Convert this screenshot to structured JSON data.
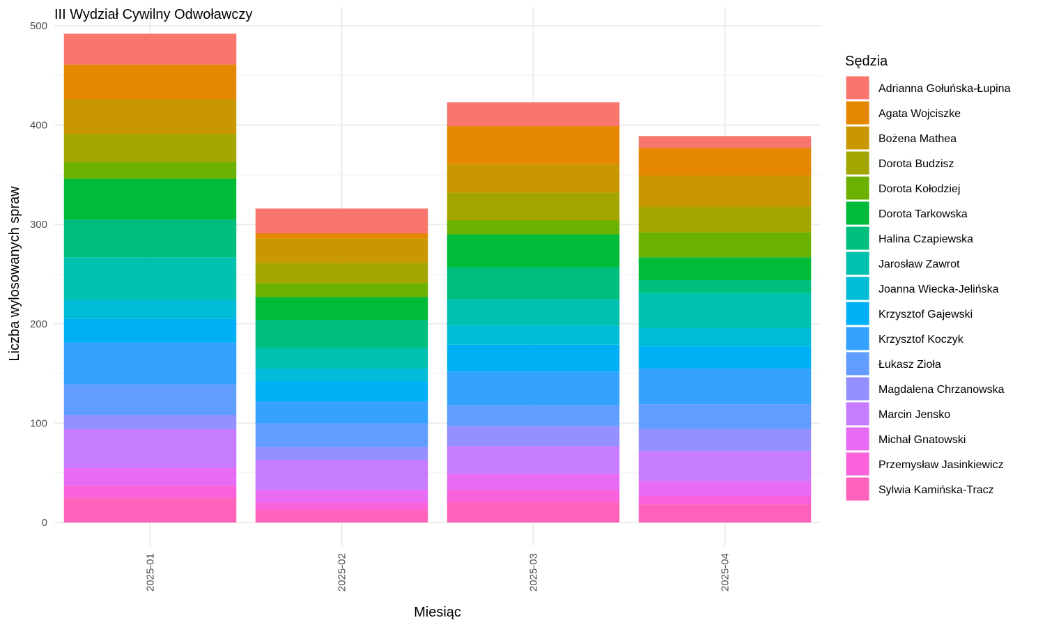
{
  "chart_data": {
    "type": "bar",
    "stacked": true,
    "title": "III Wydział Cywilny Odwoławczy",
    "xlabel": "Miesiąc",
    "ylabel": "Liczba wylosowanych spraw",
    "ylim": [
      0,
      500
    ],
    "yticks": [
      0,
      100,
      200,
      300,
      400,
      500
    ],
    "grid": true,
    "legend_title": "Sędzia",
    "legend_position": "right",
    "categories": [
      "2025-01",
      "2025-02",
      "2025-03",
      "2025-04"
    ],
    "series": [
      {
        "name": "Adrianna Gołuńska-Łupina",
        "color": "#F8766D",
        "values": [
          31,
          25,
          24,
          12
        ]
      },
      {
        "name": "Agata Wojciszke",
        "color": "#E58700",
        "values": [
          35,
          5,
          38,
          28
        ]
      },
      {
        "name": "Bożena Mathea",
        "color": "#C99800",
        "values": [
          35,
          25,
          29,
          31
        ]
      },
      {
        "name": "Dorota Budzisz",
        "color": "#A3A500",
        "values": [
          28,
          20,
          28,
          26
        ]
      },
      {
        "name": "Dorota Kołodziej",
        "color": "#6BB100",
        "values": [
          17,
          14,
          14,
          25
        ]
      },
      {
        "name": "Dorota Tarkowska",
        "color": "#00BA38",
        "values": [
          41,
          23,
          33,
          23
        ]
      },
      {
        "name": "Halina Czapiewska",
        "color": "#00BF7D",
        "values": [
          38,
          28,
          32,
          13
        ]
      },
      {
        "name": "Jarosław Zawrot",
        "color": "#00C0AF",
        "values": [
          43,
          21,
          27,
          35
        ]
      },
      {
        "name": "Joanna Wiecka-Jelińska",
        "color": "#00BCD8",
        "values": [
          19,
          13,
          19,
          19
        ]
      },
      {
        "name": "Krzysztof Gajewski",
        "color": "#00B0F6",
        "values": [
          24,
          20,
          27,
          22
        ]
      },
      {
        "name": "Krzysztof Koczyk",
        "color": "#35A2FF",
        "values": [
          42,
          22,
          34,
          36
        ]
      },
      {
        "name": "Łukasz Zioła",
        "color": "#619CFF",
        "values": [
          31,
          24,
          21,
          25
        ]
      },
      {
        "name": "Magdalena Chrzanowska",
        "color": "#9590FF",
        "values": [
          14,
          13,
          20,
          22
        ]
      },
      {
        "name": "Marcin Jensko",
        "color": "#C77CFF",
        "values": [
          39,
          30,
          28,
          30
        ]
      },
      {
        "name": "Michał Gnatowski",
        "color": "#E76BF3",
        "values": [
          18,
          13,
          16,
          15
        ]
      },
      {
        "name": "Przemysław Jasinkiewicz",
        "color": "#FA62DB",
        "values": [
          12,
          7,
          12,
          9
        ]
      },
      {
        "name": "Sylwia Kamińska-Tracz",
        "color": "#FF62BC",
        "values": [
          25,
          13,
          21,
          18
        ]
      }
    ]
  }
}
